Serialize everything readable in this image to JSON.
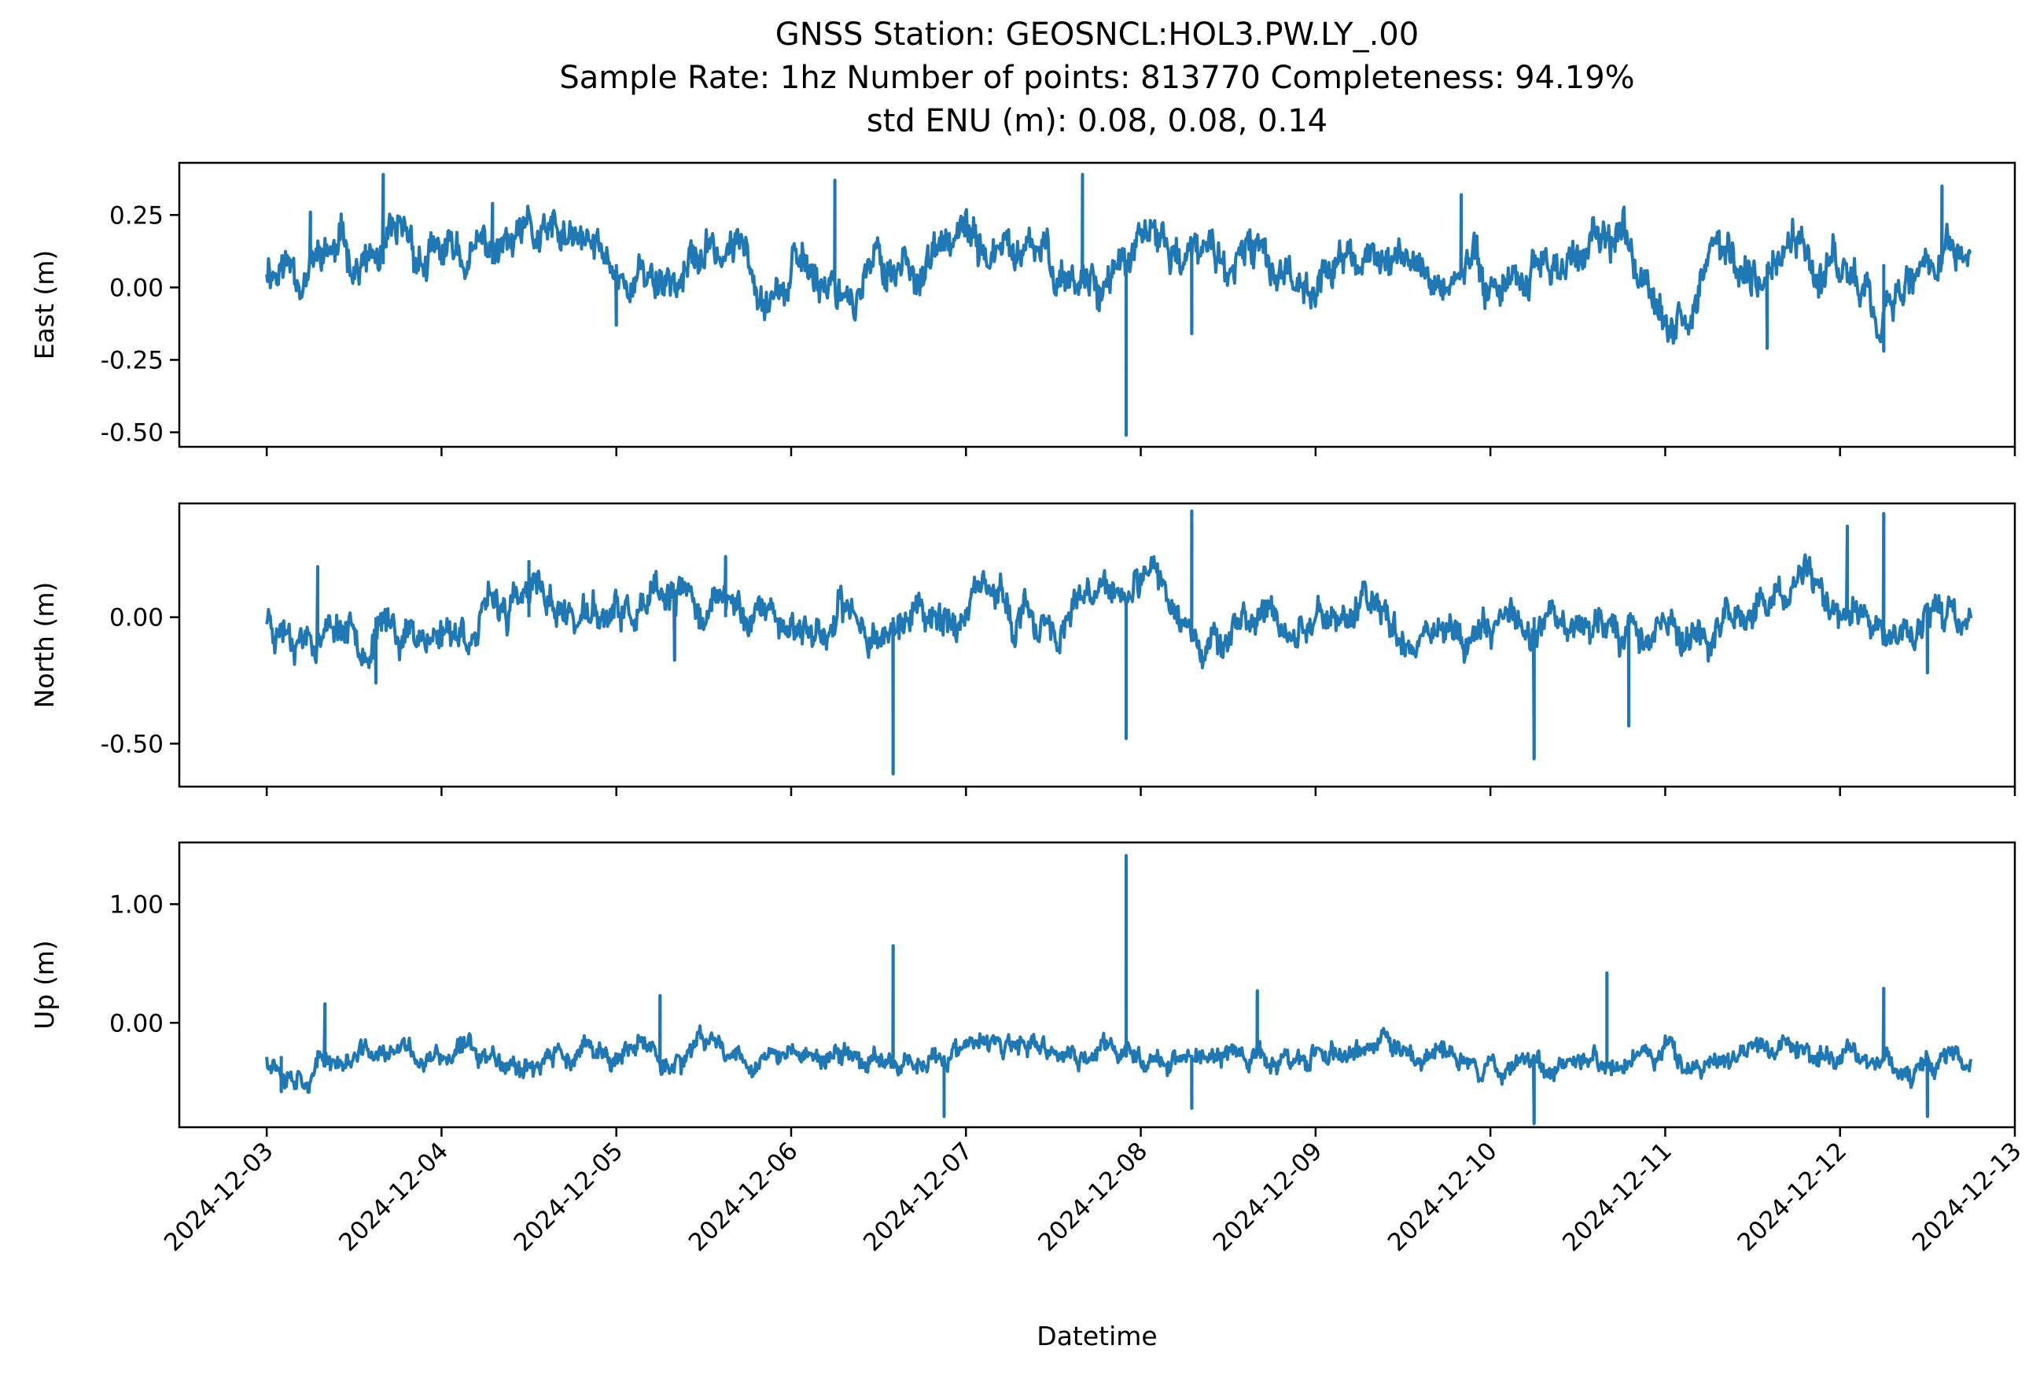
{
  "chart_data": {
    "type": "line",
    "title_lines": [
      "GNSS Station: GEOSNCL:HOL3.PW.LY_.00",
      "Sample Rate: 1hz   Number of points: 813770    Completeness:  94.19%",
      "std ENU (m):  0.08, 0.08, 0.14"
    ],
    "xlabel": "Datetime",
    "x_ticks": [
      "2024-12-03",
      "2024-12-04",
      "2024-12-05",
      "2024-12-06",
      "2024-12-07",
      "2024-12-08",
      "2024-12-09",
      "2024-12-10",
      "2024-12-11",
      "2024-12-12",
      "2024-12-13"
    ],
    "x_range": [
      "2024-12-02 12:00",
      "2024-12-13 00:00"
    ],
    "x_data_range": [
      "2024-12-03 00:00",
      "2024-12-12 18:00"
    ],
    "line_color": "#1f77b4",
    "panels": [
      {
        "ylabel": "East (m)",
        "ylim": [
          -0.55,
          0.43
        ],
        "yticks": [
          0.25,
          0.0,
          -0.25,
          -0.5
        ],
        "ytick_labels": [
          "0.25",
          "0.00",
          "-0.25",
          "-0.50"
        ],
        "baseline": 0.08,
        "amplitude": 0.09,
        "seed": 11,
        "spikes": [
          {
            "x": "2024-12-03 06:00",
            "y": 0.26
          },
          {
            "x": "2024-12-03 16:00",
            "y": 0.39
          },
          {
            "x": "2024-12-04 07:00",
            "y": 0.29
          },
          {
            "x": "2024-12-05 00:00",
            "y": -0.13
          },
          {
            "x": "2024-12-06 06:00",
            "y": 0.37
          },
          {
            "x": "2024-12-07 16:00",
            "y": 0.39
          },
          {
            "x": "2024-12-07 22:00",
            "y": -0.51
          },
          {
            "x": "2024-12-08 07:00",
            "y": -0.16
          },
          {
            "x": "2024-12-09 20:00",
            "y": 0.32
          },
          {
            "x": "2024-12-11 14:00",
            "y": -0.21
          },
          {
            "x": "2024-12-12 06:00",
            "y": -0.22
          },
          {
            "x": "2024-12-12 14:00",
            "y": 0.35
          }
        ]
      },
      {
        "ylabel": "North (m)",
        "ylim": [
          -0.67,
          0.45
        ],
        "yticks": [
          0.0,
          -0.5
        ],
        "ytick_labels": [
          "0.00",
          "-0.50"
        ],
        "baseline": 0.0,
        "amplitude": 0.09,
        "seed": 23,
        "spikes": [
          {
            "x": "2024-12-03 07:00",
            "y": 0.2
          },
          {
            "x": "2024-12-03 15:00",
            "y": -0.26
          },
          {
            "x": "2024-12-04 12:00",
            "y": 0.22
          },
          {
            "x": "2024-12-05 08:00",
            "y": -0.17
          },
          {
            "x": "2024-12-05 15:00",
            "y": 0.24
          },
          {
            "x": "2024-12-06 14:00",
            "y": -0.62
          },
          {
            "x": "2024-12-07 22:00",
            "y": -0.48
          },
          {
            "x": "2024-12-08 07:00",
            "y": 0.42
          },
          {
            "x": "2024-12-10 06:00",
            "y": -0.56
          },
          {
            "x": "2024-12-10 19:00",
            "y": -0.43
          },
          {
            "x": "2024-12-12 01:00",
            "y": 0.36
          },
          {
            "x": "2024-12-12 06:00",
            "y": 0.41
          },
          {
            "x": "2024-12-12 12:00",
            "y": -0.22
          }
        ]
      },
      {
        "ylabel": "Up (m)",
        "ylim": [
          -0.88,
          1.52
        ],
        "yticks": [
          1.0,
          0.0
        ],
        "ytick_labels": [
          "1.00",
          "0.00"
        ],
        "baseline": -0.28,
        "amplitude": 0.12,
        "seed": 37,
        "spikes": [
          {
            "x": "2024-12-03 02:00",
            "y": -0.58
          },
          {
            "x": "2024-12-03 08:00",
            "y": 0.16
          },
          {
            "x": "2024-12-05 06:00",
            "y": 0.23
          },
          {
            "x": "2024-12-06 14:00",
            "y": 0.65
          },
          {
            "x": "2024-12-06 21:00",
            "y": -0.79
          },
          {
            "x": "2024-12-07 22:00",
            "y": 1.41
          },
          {
            "x": "2024-12-08 07:00",
            "y": -0.72
          },
          {
            "x": "2024-12-08 16:00",
            "y": 0.27
          },
          {
            "x": "2024-12-10 06:00",
            "y": -0.85
          },
          {
            "x": "2024-12-10 16:00",
            "y": 0.42
          },
          {
            "x": "2024-12-12 06:00",
            "y": 0.29
          },
          {
            "x": "2024-12-12 12:00",
            "y": -0.79
          }
        ]
      }
    ]
  }
}
